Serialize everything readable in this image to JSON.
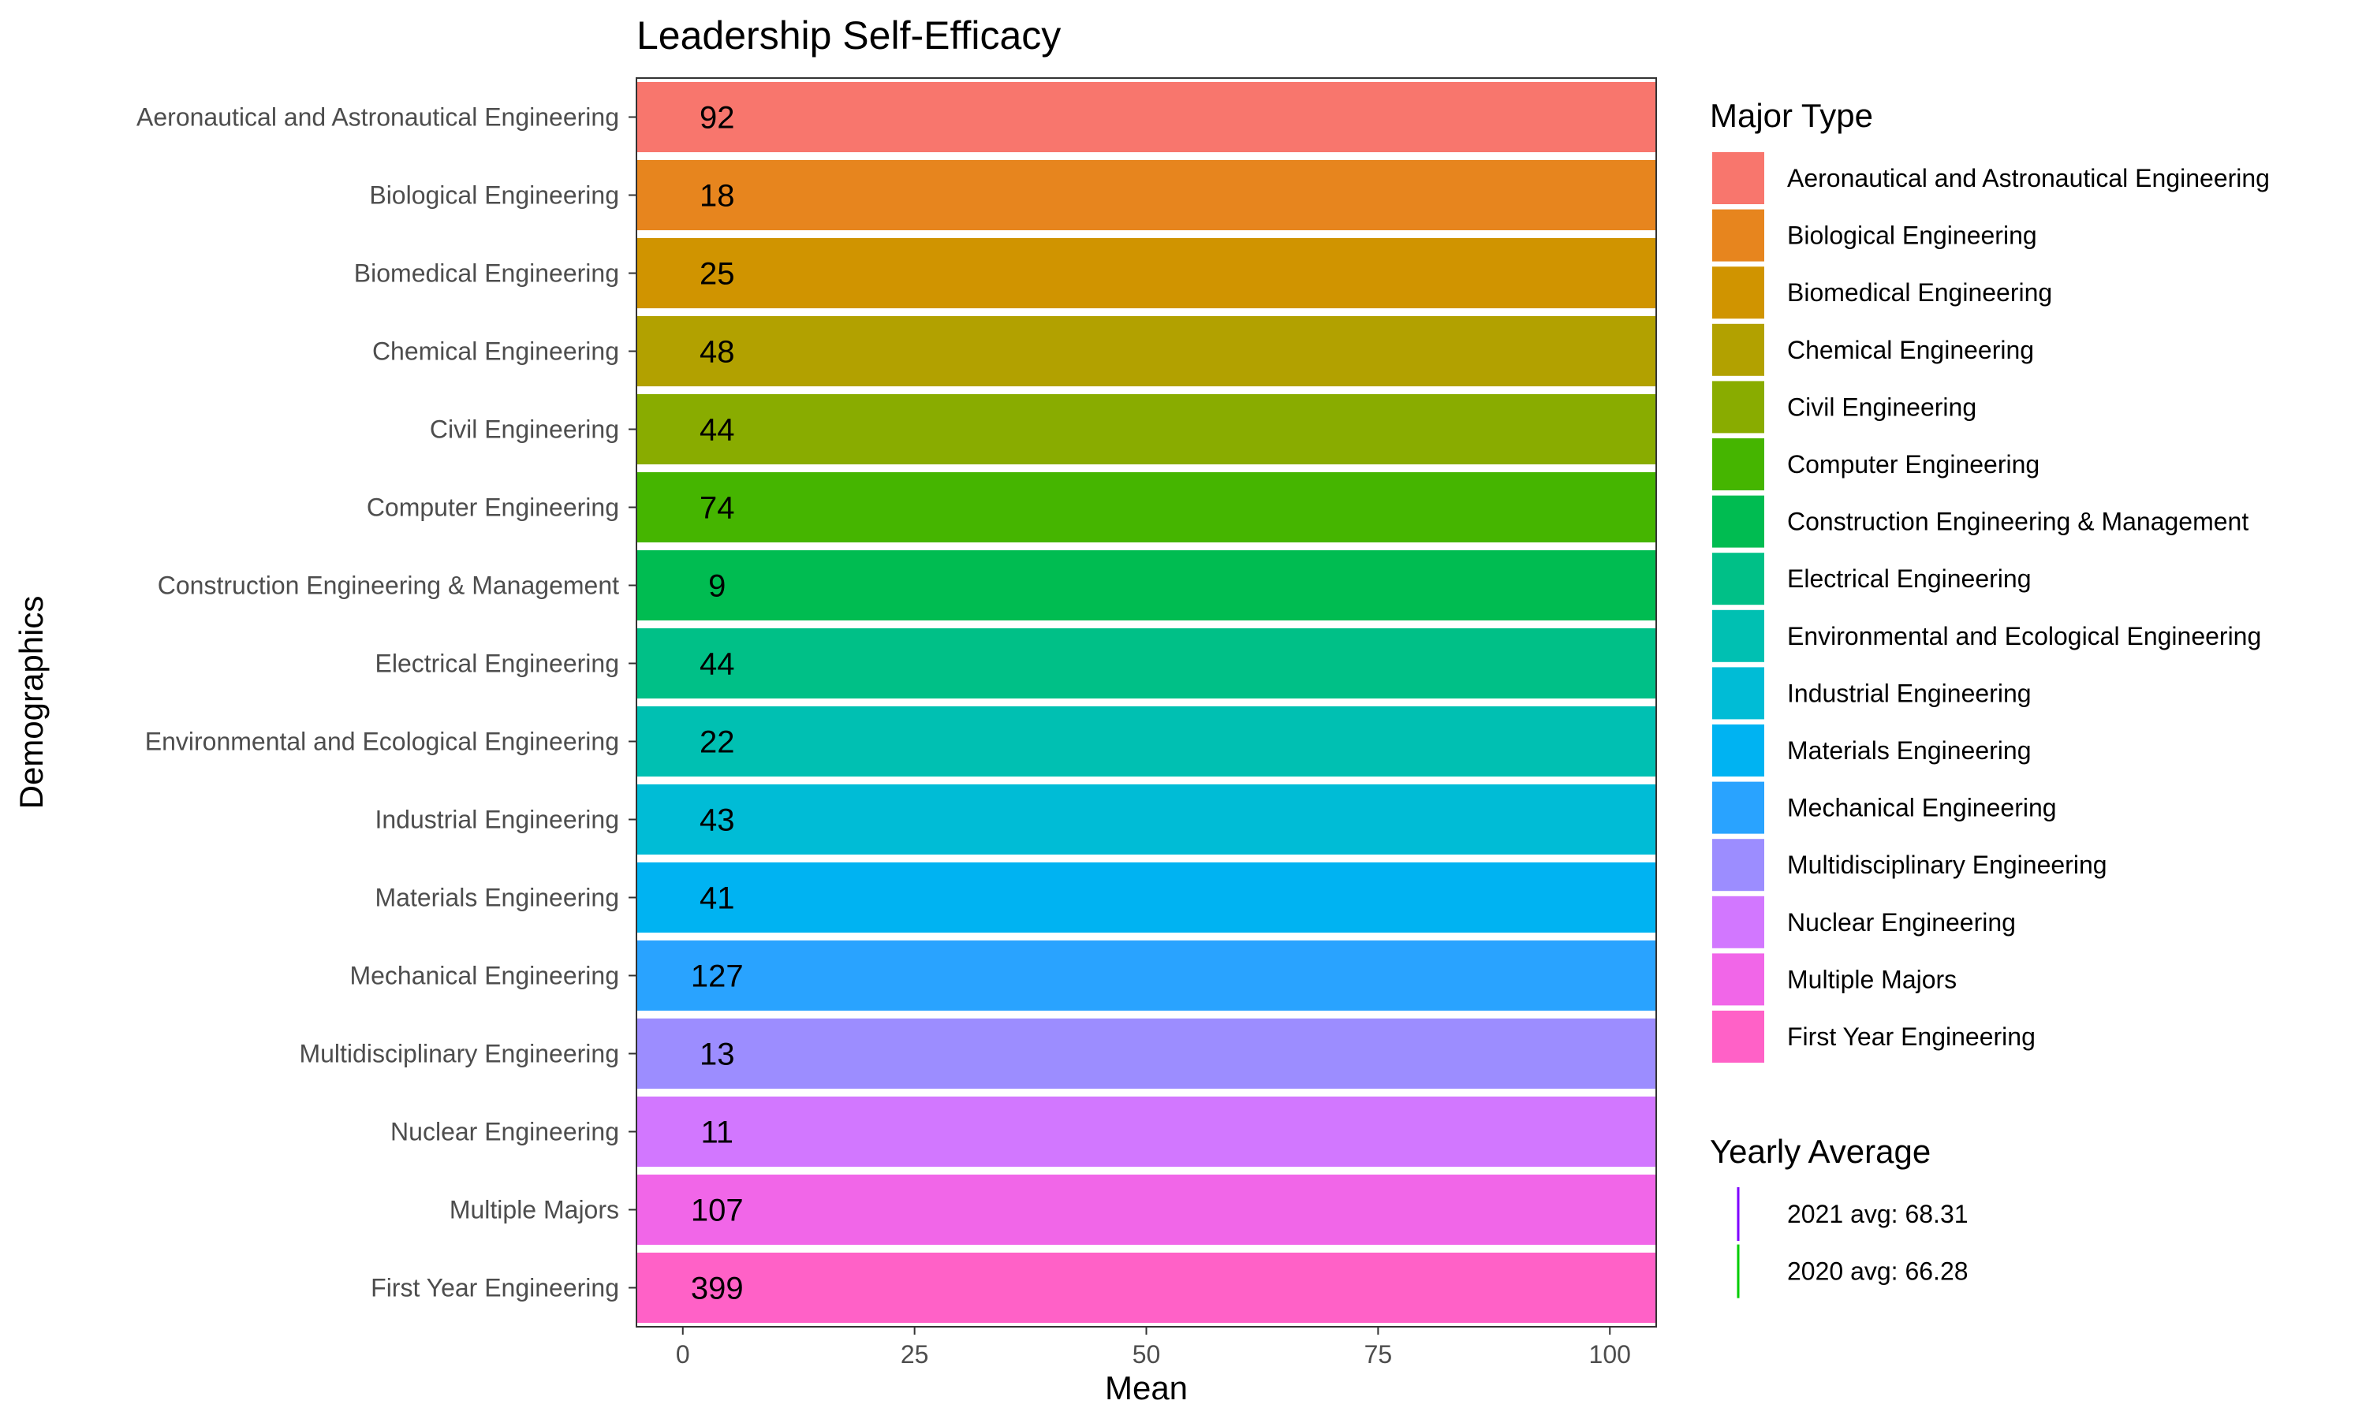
{
  "chart_data": {
    "type": "bar",
    "orientation": "horizontal",
    "title": "Leadership Self-Efficacy",
    "xlabel": "Mean",
    "ylabel": "Demographics",
    "xlim": [
      -5,
      105
    ],
    "xticks": [
      0,
      25,
      50,
      75,
      100
    ],
    "grid": false,
    "categories": [
      "Aeronautical and Astronautical Engineering",
      "Biological Engineering",
      "Biomedical Engineering",
      "Chemical Engineering",
      "Civil Engineering",
      "Computer Engineering",
      "Construction Engineering & Management",
      "Electrical Engineering",
      "Environmental and Ecological Engineering",
      "Industrial Engineering",
      "Materials Engineering",
      "Mechanical Engineering",
      "Multidisciplinary Engineering",
      "Nuclear Engineering",
      "Multiple Majors",
      "First Year Engineering"
    ],
    "values": [
      105,
      105,
      105,
      105,
      105,
      105,
      105,
      105,
      105,
      105,
      105,
      105,
      105,
      105,
      105,
      105
    ],
    "bar_labels": [
      "92",
      "18",
      "25",
      "48",
      "44",
      "74",
      "9",
      "44",
      "22",
      "43",
      "41",
      "127",
      "13",
      "11",
      "107",
      "399"
    ],
    "colors": [
      "#F8766D",
      "#E7851E",
      "#D09400",
      "#B2A100",
      "#89AC00",
      "#45B500",
      "#00BC51",
      "#00C087",
      "#00C0B2",
      "#00BCD6",
      "#00B3F2",
      "#29A3FF",
      "#9C8DFF",
      "#D277FF",
      "#F166E8",
      "#FF61C7"
    ],
    "legend": {
      "title": "Major Type",
      "position": "right",
      "entries": [
        "Aeronautical and Astronautical Engineering",
        "Biological Engineering",
        "Biomedical Engineering",
        "Chemical Engineering",
        "Civil Engineering",
        "Computer Engineering",
        "Construction Engineering & Management",
        "Electrical Engineering",
        "Environmental and Ecological Engineering",
        "Industrial Engineering",
        "Materials Engineering",
        "Mechanical Engineering",
        "Multidisciplinary Engineering",
        "Nuclear Engineering",
        "Multiple Majors",
        "First Year Engineering"
      ]
    },
    "reference_lines": {
      "title": "Yearly Average",
      "entries": [
        {
          "label": "2021 avg: 68.31",
          "value": 68.31,
          "color": "#7F00FF"
        },
        {
          "label": "2020 avg: 66.28",
          "value": 66.28,
          "color": "#00CC00"
        }
      ]
    }
  }
}
